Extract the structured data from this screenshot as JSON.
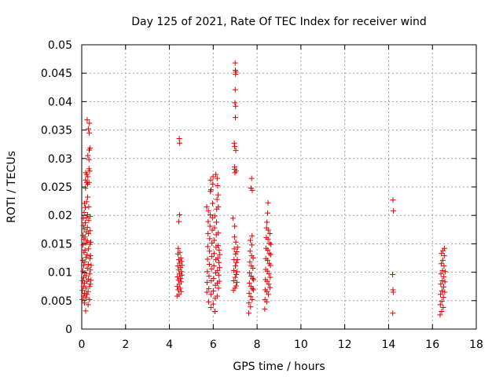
{
  "chart_data": {
    "type": "scatter",
    "title": "Day 125 of 2021, Rate Of TEC Index for receiver wind",
    "xlabel": "GPS time / hours",
    "ylabel": "ROTI / TECUs",
    "xlim": [
      0,
      18
    ],
    "ylim": [
      0,
      0.05
    ],
    "xticks": [
      "0",
      "2",
      "4",
      "6",
      "8",
      "10",
      "12",
      "14",
      "16",
      "18"
    ],
    "yticks": [
      "0",
      "0.005",
      "0.01",
      "0.015",
      "0.02",
      "0.025",
      "0.03",
      "0.035",
      "0.04",
      "0.045",
      "0.05"
    ],
    "grid": true,
    "marker": "+",
    "series": [
      {
        "name": "ROTI",
        "color": "#e00000",
        "points": [
          [
            0.02,
            0.0052
          ],
          [
            0.03,
            0.0068
          ],
          [
            0.04,
            0.0085
          ],
          [
            0.05,
            0.0102
          ],
          [
            0.05,
            0.0121
          ],
          [
            0.06,
            0.0148
          ],
          [
            0.06,
            0.0165
          ],
          [
            0.07,
            0.0182
          ],
          [
            0.07,
            0.0195
          ],
          [
            0.08,
            0.0058
          ],
          [
            0.08,
            0.0075
          ],
          [
            0.09,
            0.0091
          ],
          [
            0.09,
            0.0112
          ],
          [
            0.1,
            0.0135
          ],
          [
            0.1,
            0.0158
          ],
          [
            0.11,
            0.0176
          ],
          [
            0.11,
            0.0205
          ],
          [
            0.12,
            0.0221
          ],
          [
            0.12,
            0.0046
          ],
          [
            0.13,
            0.0063
          ],
          [
            0.13,
            0.0081
          ],
          [
            0.14,
            0.0099
          ],
          [
            0.14,
            0.0118
          ],
          [
            0.15,
            0.0139
          ],
          [
            0.15,
            0.0162
          ],
          [
            0.16,
            0.0187
          ],
          [
            0.16,
            0.0214
          ],
          [
            0.17,
            0.0248
          ],
          [
            0.17,
            0.0262
          ],
          [
            0.18,
            0.0275
          ],
          [
            0.18,
            0.0032
          ],
          [
            0.19,
            0.0055
          ],
          [
            0.19,
            0.0072
          ],
          [
            0.2,
            0.0094
          ],
          [
            0.2,
            0.0126
          ],
          [
            0.21,
            0.0152
          ],
          [
            0.21,
            0.0171
          ],
          [
            0.22,
            0.0196
          ],
          [
            0.22,
            0.0224
          ],
          [
            0.23,
            0.0258
          ],
          [
            0.23,
            0.0272
          ],
          [
            0.24,
            0.0061
          ],
          [
            0.24,
            0.0084
          ],
          [
            0.25,
            0.0107
          ],
          [
            0.25,
            0.0131
          ],
          [
            0.26,
            0.0155
          ],
          [
            0.26,
            0.0179
          ],
          [
            0.27,
            0.0201
          ],
          [
            0.27,
            0.0232
          ],
          [
            0.28,
            0.0268
          ],
          [
            0.28,
            0.0305
          ],
          [
            0.29,
            0.0043
          ],
          [
            0.29,
            0.0066
          ],
          [
            0.3,
            0.0088
          ],
          [
            0.3,
            0.0114
          ],
          [
            0.31,
            0.0141
          ],
          [
            0.31,
            0.0168
          ],
          [
            0.32,
            0.0191
          ],
          [
            0.32,
            0.0215
          ],
          [
            0.33,
            0.0258
          ],
          [
            0.33,
            0.0282
          ],
          [
            0.34,
            0.0315
          ],
          [
            0.34,
            0.0345
          ],
          [
            0.35,
            0.0362
          ],
          [
            0.35,
            0.0052
          ],
          [
            0.36,
            0.0075
          ],
          [
            0.36,
            0.0097
          ],
          [
            0.37,
            0.0124
          ],
          [
            0.37,
            0.0149
          ],
          [
            0.38,
            0.0173
          ],
          [
            0.38,
            0.0198
          ],
          [
            0.39,
            0.0079
          ],
          [
            0.39,
            0.0104
          ],
          [
            0.4,
            0.0129
          ],
          [
            0.41,
            0.0153
          ],
          [
            0.42,
            0.0086
          ],
          [
            0.43,
            0.0112
          ],
          [
            0.25,
            0.0368
          ],
          [
            0.3,
            0.0352
          ],
          [
            0.33,
            0.0298
          ],
          [
            0.36,
            0.0278
          ],
          [
            0.27,
            0.0255
          ],
          [
            0.38,
            0.0318
          ],
          [
            4.35,
            0.0058
          ],
          [
            4.36,
            0.0075
          ],
          [
            4.37,
            0.0092
          ],
          [
            4.38,
            0.0111
          ],
          [
            4.39,
            0.0132
          ],
          [
            4.4,
            0.0069
          ],
          [
            4.41,
            0.0086
          ],
          [
            4.42,
            0.0104
          ],
          [
            4.43,
            0.0122
          ],
          [
            4.44,
            0.0061
          ],
          [
            4.45,
            0.0079
          ],
          [
            4.46,
            0.0097
          ],
          [
            4.47,
            0.0116
          ],
          [
            4.48,
            0.0135
          ],
          [
            4.49,
            0.0072
          ],
          [
            4.5,
            0.0089
          ],
          [
            4.51,
            0.0108
          ],
          [
            4.52,
            0.0125
          ],
          [
            4.53,
            0.0066
          ],
          [
            4.54,
            0.0083
          ],
          [
            4.55,
            0.0101
          ],
          [
            4.56,
            0.0119
          ],
          [
            4.57,
            0.0095
          ],
          [
            4.58,
            0.0112
          ],
          [
            4.45,
            0.0335
          ],
          [
            4.47,
            0.0327
          ],
          [
            4.46,
            0.0201
          ],
          [
            4.43,
            0.0189
          ],
          [
            4.4,
            0.0142
          ],
          [
            5.7,
            0.0215
          ],
          [
            5.71,
            0.0065
          ],
          [
            5.72,
            0.0082
          ],
          [
            5.73,
            0.0101
          ],
          [
            5.74,
            0.0123
          ],
          [
            5.75,
            0.0145
          ],
          [
            5.76,
            0.0168
          ],
          [
            5.77,
            0.0189
          ],
          [
            5.78,
            0.0208
          ],
          [
            5.79,
            0.0048
          ],
          [
            5.8,
            0.0071
          ],
          [
            5.81,
            0.0093
          ],
          [
            5.82,
            0.0114
          ],
          [
            5.83,
            0.0137
          ],
          [
            5.84,
            0.0159
          ],
          [
            5.85,
            0.0181
          ],
          [
            5.86,
            0.0201
          ],
          [
            5.87,
            0.0242
          ],
          [
            5.88,
            0.0262
          ],
          [
            5.89,
            0.0038
          ],
          [
            5.9,
            0.0061
          ],
          [
            5.91,
            0.0085
          ],
          [
            5.92,
            0.0106
          ],
          [
            5.93,
            0.0128
          ],
          [
            5.94,
            0.0151
          ],
          [
            5.95,
            0.0174
          ],
          [
            5.96,
            0.0196
          ],
          [
            5.97,
            0.0221
          ],
          [
            5.98,
            0.0255
          ],
          [
            5.99,
            0.0268
          ],
          [
            6.0,
            0.0044
          ],
          [
            6.01,
            0.0067
          ],
          [
            6.02,
            0.0089
          ],
          [
            6.03,
            0.0111
          ],
          [
            6.04,
            0.0133
          ],
          [
            6.05,
            0.0156
          ],
          [
            6.06,
            0.0178
          ],
          [
            6.07,
            0.0199
          ],
          [
            6.08,
            0.0031
          ],
          [
            6.09,
            0.0054
          ],
          [
            6.1,
            0.0077
          ],
          [
            6.11,
            0.0099
          ],
          [
            6.12,
            0.0122
          ],
          [
            6.13,
            0.0144
          ],
          [
            6.14,
            0.0166
          ],
          [
            6.15,
            0.0188
          ],
          [
            6.16,
            0.0211
          ],
          [
            6.17,
            0.0228
          ],
          [
            6.18,
            0.0058
          ],
          [
            6.19,
            0.0081
          ],
          [
            6.2,
            0.0103
          ],
          [
            6.21,
            0.0125
          ],
          [
            6.22,
            0.0147
          ],
          [
            6.23,
            0.0169
          ],
          [
            6.24,
            0.0072
          ],
          [
            6.25,
            0.0095
          ],
          [
            6.26,
            0.0117
          ],
          [
            6.27,
            0.0139
          ],
          [
            6.28,
            0.0084
          ],
          [
            6.29,
            0.0108
          ],
          [
            6.3,
            0.0131
          ],
          [
            6.18,
            0.0265
          ],
          [
            6.2,
            0.0252
          ],
          [
            6.22,
            0.0236
          ],
          [
            6.23,
            0.0215
          ],
          [
            6.12,
            0.0272
          ],
          [
            5.9,
            0.0245
          ],
          [
            6.9,
            0.0195
          ],
          [
            6.92,
            0.0068
          ],
          [
            6.93,
            0.0085
          ],
          [
            6.94,
            0.0103
          ],
          [
            6.95,
            0.0122
          ],
          [
            6.96,
            0.0141
          ],
          [
            6.97,
            0.0162
          ],
          [
            6.98,
            0.0181
          ],
          [
            6.99,
            0.0072
          ],
          [
            7.0,
            0.0091
          ],
          [
            7.01,
            0.0111
          ],
          [
            7.02,
            0.0132
          ],
          [
            7.03,
            0.0153
          ],
          [
            7.04,
            0.0076
          ],
          [
            7.05,
            0.0096
          ],
          [
            7.06,
            0.0117
          ],
          [
            7.07,
            0.0136
          ],
          [
            7.08,
            0.0082
          ],
          [
            7.09,
            0.0101
          ],
          [
            7.1,
            0.0122
          ],
          [
            7.11,
            0.0144
          ],
          [
            7.0,
            0.0468
          ],
          [
            7.01,
            0.0455
          ],
          [
            7.03,
            0.0452
          ],
          [
            7.02,
            0.0448
          ],
          [
            7.0,
            0.0421
          ],
          [
            6.99,
            0.0398
          ],
          [
            7.02,
            0.0392
          ],
          [
            7.01,
            0.0372
          ],
          [
            6.96,
            0.0327
          ],
          [
            6.98,
            0.0321
          ],
          [
            7.03,
            0.0314
          ],
          [
            6.97,
            0.0285
          ],
          [
            6.98,
            0.0281
          ],
          [
            7.04,
            0.0278
          ],
          [
            6.99,
            0.0275
          ],
          [
            7.62,
            0.0028
          ],
          [
            7.63,
            0.0046
          ],
          [
            7.64,
            0.0063
          ],
          [
            7.65,
            0.0081
          ],
          [
            7.66,
            0.0099
          ],
          [
            7.67,
            0.0118
          ],
          [
            7.68,
            0.0137
          ],
          [
            7.69,
            0.0156
          ],
          [
            7.7,
            0.0039
          ],
          [
            7.71,
            0.0057
          ],
          [
            7.72,
            0.0075
          ],
          [
            7.73,
            0.0093
          ],
          [
            7.74,
            0.0111
          ],
          [
            7.75,
            0.0129
          ],
          [
            7.76,
            0.0148
          ],
          [
            7.77,
            0.0164
          ],
          [
            7.78,
            0.0052
          ],
          [
            7.79,
            0.0071
          ],
          [
            7.8,
            0.0089
          ],
          [
            7.81,
            0.0107
          ],
          [
            7.82,
            0.0125
          ],
          [
            7.83,
            0.0069
          ],
          [
            7.84,
            0.0087
          ],
          [
            7.75,
            0.0265
          ],
          [
            7.72,
            0.0248
          ],
          [
            7.78,
            0.0244
          ],
          [
            8.35,
            0.0035
          ],
          [
            8.36,
            0.0052
          ],
          [
            8.37,
            0.0069
          ],
          [
            8.38,
            0.0087
          ],
          [
            8.39,
            0.0105
          ],
          [
            8.4,
            0.0124
          ],
          [
            8.41,
            0.0142
          ],
          [
            8.42,
            0.0161
          ],
          [
            8.43,
            0.0178
          ],
          [
            8.44,
            0.0048
          ],
          [
            8.45,
            0.0066
          ],
          [
            8.46,
            0.0084
          ],
          [
            8.47,
            0.0102
          ],
          [
            8.48,
            0.0121
          ],
          [
            8.49,
            0.0139
          ],
          [
            8.5,
            0.0158
          ],
          [
            8.51,
            0.0174
          ],
          [
            8.52,
            0.0061
          ],
          [
            8.53,
            0.0079
          ],
          [
            8.54,
            0.0097
          ],
          [
            8.55,
            0.0115
          ],
          [
            8.56,
            0.0133
          ],
          [
            8.57,
            0.0151
          ],
          [
            8.58,
            0.0168
          ],
          [
            8.59,
            0.0073
          ],
          [
            8.6,
            0.0091
          ],
          [
            8.61,
            0.0112
          ],
          [
            8.62,
            0.0131
          ],
          [
            8.63,
            0.0149
          ],
          [
            8.5,
            0.0222
          ],
          [
            8.48,
            0.0204
          ],
          [
            8.45,
            0.0188
          ],
          [
            14.2,
            0.0227
          ],
          [
            14.22,
            0.0208
          ],
          [
            14.18,
            0.0096
          ],
          [
            14.2,
            0.0069
          ],
          [
            14.21,
            0.0065
          ],
          [
            14.19,
            0.0028
          ],
          [
            16.35,
            0.0025
          ],
          [
            16.36,
            0.0043
          ],
          [
            16.37,
            0.0061
          ],
          [
            16.38,
            0.0079
          ],
          [
            16.39,
            0.0097
          ],
          [
            16.4,
            0.0115
          ],
          [
            16.41,
            0.0133
          ],
          [
            16.42,
            0.0031
          ],
          [
            16.43,
            0.0049
          ],
          [
            16.44,
            0.0067
          ],
          [
            16.45,
            0.0085
          ],
          [
            16.46,
            0.0103
          ],
          [
            16.47,
            0.0121
          ],
          [
            16.48,
            0.0138
          ],
          [
            16.49,
            0.0038
          ],
          [
            16.5,
            0.0056
          ],
          [
            16.51,
            0.0074
          ],
          [
            16.52,
            0.0092
          ],
          [
            16.53,
            0.0111
          ],
          [
            16.54,
            0.0129
          ],
          [
            16.55,
            0.0142
          ],
          [
            16.56,
            0.0065
          ],
          [
            16.57,
            0.0083
          ],
          [
            16.58,
            0.0101
          ]
        ]
      }
    ]
  }
}
